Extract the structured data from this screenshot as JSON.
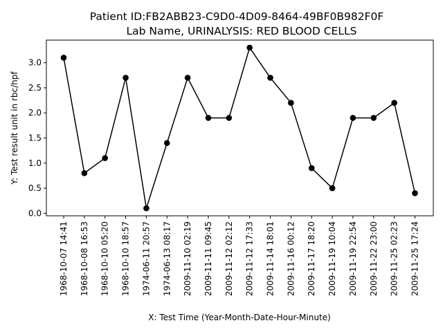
{
  "chart_data": {
    "type": "line",
    "title_line1": "Patient ID:FB2ABB23-C9D0-4D09-8464-49BF0B982F0F",
    "title_line2": "Lab Name, URINALYSIS: RED BLOOD CELLS",
    "xlabel": "X: Test Time (Year-Month-Date-Hour-Minute)",
    "ylabel": "Y: Test result unit in rbc/hpf",
    "ylim": [
      -0.05,
      3.45
    ],
    "yticks": [
      "0.0",
      "0.5",
      "1.0",
      "1.5",
      "2.0",
      "2.5",
      "3.0"
    ],
    "grid": false,
    "line_color": "#000000",
    "marker": "circle",
    "categories": [
      "1968-10-07 14:41",
      "1968-10-08 16:53",
      "1968-10-10 05:20",
      "1968-10-10 18:57",
      "1974-06-11 20:57",
      "1974-06-13 08:17",
      "2009-11-10 02:19",
      "2009-11-11 09:45",
      "2009-11-12 02:12",
      "2009-11-12 17:33",
      "2009-11-14 18:01",
      "2009-11-16 00:12",
      "2009-11-17 18:20",
      "2009-11-19 10:04",
      "2009-11-19 22:54",
      "2009-11-22 23:00",
      "2009-11-25 02:23",
      "2009-11-25 17:24"
    ],
    "values": [
      3.1,
      0.8,
      1.1,
      2.7,
      0.1,
      1.4,
      2.7,
      1.9,
      1.9,
      3.3,
      2.7,
      2.2,
      0.9,
      0.5,
      1.9,
      1.9,
      2.2,
      0.4
    ]
  }
}
